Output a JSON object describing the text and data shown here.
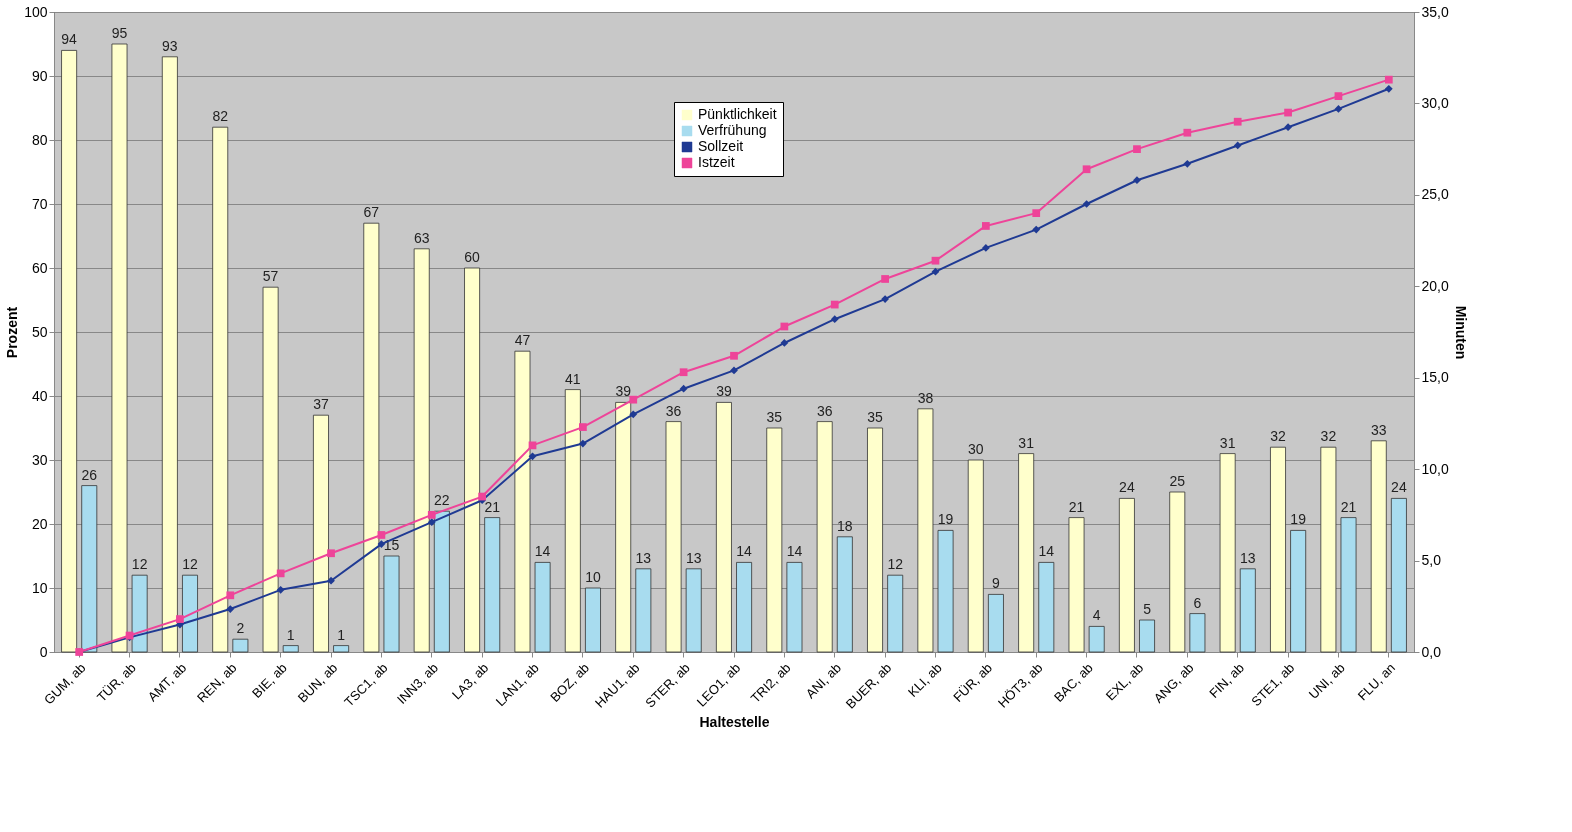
{
  "chart_data": {
    "type": "bar",
    "xlabel": "Haltestelle",
    "ylabel": "Prozent",
    "y2label": "Minuten",
    "categories": [
      "GUM, ab",
      "TÜR, ab",
      "AMT, ab",
      "REN, ab",
      "BIE, ab",
      "BUN, ab",
      "TSC1, ab",
      "INN3, ab",
      "LA3, ab",
      "LAN1, ab",
      "BOZ, ab",
      "HAU1, ab",
      "STER, ab",
      "LEO1, ab",
      "TRI2, ab",
      "ANI, ab",
      "BUER, ab",
      "KLI, ab",
      "FÜR, ab",
      "HÖT3, ab",
      "BAC, ab",
      "EXL, ab",
      "ANG, ab",
      "FIN, ab",
      "STE1, ab",
      "UNI, ab",
      "FLU, an"
    ],
    "series": [
      {
        "name": "Pünktlichkeit",
        "color": "#ffffcc",
        "values": [
          94,
          95,
          93,
          82,
          57,
          37,
          67,
          63,
          60,
          47,
          41,
          39,
          36,
          39,
          35,
          36,
          35,
          38,
          30,
          31,
          21,
          24,
          25,
          31,
          32,
          32,
          33
        ],
        "value_labels": [
          "94",
          "95",
          "93",
          "82",
          "57",
          "37",
          "67",
          "63",
          "60",
          "47",
          "41",
          "39",
          "36",
          "39",
          "35",
          "36",
          "35",
          "38",
          "30",
          "31",
          "21",
          "24",
          "25",
          "31",
          "32",
          "32",
          "33"
        ]
      },
      {
        "name": "Verfrühung",
        "color": "#a8dcef",
        "values": [
          26,
          12,
          12,
          2,
          1,
          1,
          15,
          22,
          21,
          14,
          10,
          13,
          13,
          14,
          14,
          18,
          12,
          19,
          9,
          14,
          4,
          5,
          6,
          13,
          19,
          21,
          24
        ],
        "value_labels": [
          "26",
          "12",
          "12",
          "2",
          "1",
          "1",
          "15",
          "22",
          "21",
          "14",
          "10",
          "13",
          "13",
          "14",
          "14",
          "18",
          "12",
          "19",
          "9",
          "14",
          "4",
          "5",
          "6",
          "13",
          "19",
          "21",
          "24"
        ]
      },
      {
        "name": "Sollzeit",
        "type": "line",
        "axis": "y2",
        "marker": "diamond",
        "color": "#1f3a93",
        "values": [
          0.0,
          0.8,
          1.5,
          2.35,
          3.4,
          3.9,
          5.9,
          7.1,
          8.3,
          10.7,
          11.4,
          13.0,
          14.4,
          15.4,
          16.9,
          18.2,
          19.3,
          20.8,
          22.1,
          23.1,
          24.5,
          25.8,
          26.7,
          27.7,
          28.7,
          29.7,
          30.8
        ]
      },
      {
        "name": "Istzeit",
        "type": "line",
        "axis": "y2",
        "marker": "square",
        "color": "#ee4499",
        "values": [
          0.0,
          0.9,
          1.8,
          3.1,
          4.3,
          5.4,
          6.4,
          7.5,
          8.5,
          11.3,
          12.3,
          13.8,
          15.3,
          16.2,
          17.8,
          19.0,
          20.4,
          21.4,
          23.3,
          24.0,
          26.4,
          27.5,
          28.4,
          29.0,
          29.5,
          30.4,
          31.3
        ]
      }
    ],
    "ylim": [
      0,
      100
    ],
    "yticks": [
      0,
      10,
      20,
      30,
      40,
      50,
      60,
      70,
      80,
      90,
      100
    ],
    "y2lim": [
      0,
      35
    ],
    "y2ticks": [
      {
        "value": 0,
        "label": "0,0"
      },
      {
        "value": 5,
        "label": "5,0"
      },
      {
        "value": 10,
        "label": "10,0"
      },
      {
        "value": 15,
        "label": "15,0"
      },
      {
        "value": 20,
        "label": "20,0"
      },
      {
        "value": 25,
        "label": "25,0"
      },
      {
        "value": 30,
        "label": "30,0"
      },
      {
        "value": 35,
        "label": "35,0"
      }
    ],
    "grid": "y",
    "legend": "top"
  }
}
